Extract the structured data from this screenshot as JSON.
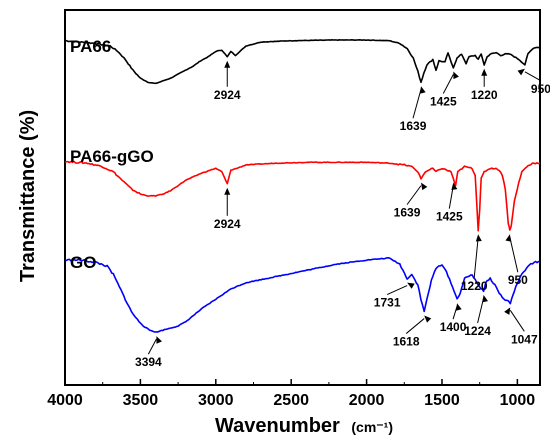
{
  "chart_data": {
    "type": "line",
    "xlabel": "Wavenumber",
    "xlabel_unit": "(cm⁻¹)",
    "ylabel": "Transmittance (%)",
    "xlim": [
      4000,
      850
    ],
    "x_reversed": true,
    "x_ticks": [
      "4000",
      "3500",
      "3000",
      "2500",
      "2000",
      "1500",
      "1000"
    ],
    "y_ticks": false,
    "grid": false,
    "series": [
      {
        "name": "PA66",
        "color": "#000000",
        "points": [
          [
            4000,
            98
          ],
          [
            3900,
            97
          ],
          [
            3800,
            96
          ],
          [
            3700,
            94
          ],
          [
            3650,
            90
          ],
          [
            3600,
            84
          ],
          [
            3550,
            76
          ],
          [
            3500,
            70
          ],
          [
            3450,
            67
          ],
          [
            3400,
            66
          ],
          [
            3350,
            68
          ],
          [
            3300,
            70
          ],
          [
            3250,
            73
          ],
          [
            3200,
            76
          ],
          [
            3150,
            79
          ],
          [
            3100,
            83
          ],
          [
            3050,
            86
          ],
          [
            3000,
            90
          ],
          [
            2960,
            91
          ],
          [
            2924,
            86
          ],
          [
            2900,
            90
          ],
          [
            2870,
            87
          ],
          [
            2850,
            89
          ],
          [
            2800,
            94
          ],
          [
            2700,
            97
          ],
          [
            2500,
            98
          ],
          [
            2200,
            98.5
          ],
          [
            2000,
            98.5
          ],
          [
            1850,
            98
          ],
          [
            1780,
            96
          ],
          [
            1730,
            92
          ],
          [
            1690,
            85
          ],
          [
            1660,
            75
          ],
          [
            1639,
            67
          ],
          [
            1620,
            74
          ],
          [
            1600,
            80
          ],
          [
            1560,
            84
          ],
          [
            1540,
            76
          ],
          [
            1520,
            83
          ],
          [
            1480,
            82
          ],
          [
            1460,
            89
          ],
          [
            1440,
            82
          ],
          [
            1425,
            78
          ],
          [
            1400,
            85
          ],
          [
            1370,
            88
          ],
          [
            1340,
            81
          ],
          [
            1320,
            86
          ],
          [
            1280,
            87
          ],
          [
            1260,
            84
          ],
          [
            1240,
            88
          ],
          [
            1220,
            80
          ],
          [
            1200,
            86
          ],
          [
            1180,
            88
          ],
          [
            1140,
            89
          ],
          [
            1110,
            87
          ],
          [
            1080,
            88
          ],
          [
            1050,
            88
          ],
          [
            1020,
            86
          ],
          [
            990,
            84
          ],
          [
            950,
            80
          ],
          [
            930,
            88
          ],
          [
            900,
            92
          ],
          [
            880,
            93
          ],
          [
            850,
            93
          ]
        ]
      },
      {
        "name": "PA66-gGO",
        "color": "#ff0000",
        "points": [
          [
            4000,
            98
          ],
          [
            3850,
            97
          ],
          [
            3750,
            95
          ],
          [
            3680,
            92
          ],
          [
            3620,
            87
          ],
          [
            3560,
            82
          ],
          [
            3500,
            79
          ],
          [
            3450,
            78
          ],
          [
            3400,
            78
          ],
          [
            3350,
            79
          ],
          [
            3300,
            81
          ],
          [
            3250,
            84
          ],
          [
            3200,
            87
          ],
          [
            3100,
            91
          ],
          [
            3000,
            94
          ],
          [
            2960,
            92
          ],
          [
            2924,
            85
          ],
          [
            2900,
            93
          ],
          [
            2860,
            94
          ],
          [
            2800,
            96
          ],
          [
            2600,
            97
          ],
          [
            2400,
            97.5
          ],
          [
            2200,
            97.5
          ],
          [
            2000,
            97.5
          ],
          [
            1850,
            97
          ],
          [
            1750,
            96
          ],
          [
            1700,
            95
          ],
          [
            1660,
            92
          ],
          [
            1639,
            88
          ],
          [
            1610,
            92
          ],
          [
            1560,
            94
          ],
          [
            1540,
            92
          ],
          [
            1500,
            94
          ],
          [
            1470,
            93
          ],
          [
            1440,
            92
          ],
          [
            1425,
            88
          ],
          [
            1410,
            84
          ],
          [
            1395,
            92
          ],
          [
            1350,
            95
          ],
          [
            1300,
            94
          ],
          [
            1280,
            90
          ],
          [
            1260,
            58
          ],
          [
            1250,
            70
          ],
          [
            1240,
            88
          ],
          [
            1220,
            92
          ],
          [
            1180,
            94
          ],
          [
            1150,
            94
          ],
          [
            1120,
            93
          ],
          [
            1100,
            90
          ],
          [
            1080,
            82
          ],
          [
            1060,
            62
          ],
          [
            1050,
            58
          ],
          [
            1040,
            61
          ],
          [
            1020,
            75
          ],
          [
            1000,
            82
          ],
          [
            990,
            86
          ],
          [
            970,
            92
          ],
          [
            950,
            94
          ],
          [
            920,
            96
          ],
          [
            900,
            97
          ],
          [
            850,
            97
          ]
        ]
      },
      {
        "name": "GO",
        "color": "#0000ff",
        "points": [
          [
            4000,
            99
          ],
          [
            3900,
            99
          ],
          [
            3800,
            98
          ],
          [
            3720,
            96
          ],
          [
            3680,
            92
          ],
          [
            3640,
            86
          ],
          [
            3600,
            80
          ],
          [
            3560,
            74
          ],
          [
            3520,
            70
          ],
          [
            3480,
            67
          ],
          [
            3440,
            65
          ],
          [
            3394,
            64
          ],
          [
            3350,
            65
          ],
          [
            3300,
            66
          ],
          [
            3250,
            67
          ],
          [
            3200,
            69
          ],
          [
            3150,
            72
          ],
          [
            3100,
            75
          ],
          [
            3000,
            80
          ],
          [
            2900,
            85
          ],
          [
            2800,
            88
          ],
          [
            2600,
            91
          ],
          [
            2400,
            94
          ],
          [
            2200,
            97
          ],
          [
            2000,
            99
          ],
          [
            1850,
            100
          ],
          [
            1780,
            97
          ],
          [
            1731,
            90
          ],
          [
            1700,
            92
          ],
          [
            1660,
            87
          ],
          [
            1640,
            80
          ],
          [
            1618,
            74
          ],
          [
            1600,
            80
          ],
          [
            1570,
            89
          ],
          [
            1540,
            95
          ],
          [
            1500,
            97
          ],
          [
            1470,
            93
          ],
          [
            1440,
            88
          ],
          [
            1400,
            80
          ],
          [
            1380,
            83
          ],
          [
            1350,
            90
          ],
          [
            1300,
            92
          ],
          [
            1270,
            88
          ],
          [
            1250,
            86
          ],
          [
            1224,
            84
          ],
          [
            1210,
            88
          ],
          [
            1180,
            90
          ],
          [
            1150,
            87
          ],
          [
            1120,
            83
          ],
          [
            1090,
            80
          ],
          [
            1060,
            79
          ],
          [
            1047,
            78
          ],
          [
            1030,
            82
          ],
          [
            1000,
            88
          ],
          [
            970,
            92
          ],
          [
            940,
            95
          ],
          [
            910,
            97
          ],
          [
            880,
            98
          ],
          [
            850,
            98
          ]
        ]
      }
    ],
    "series_labels": [
      {
        "series": "PA66",
        "text": "PA66"
      },
      {
        "series": "PA66-gGO",
        "text": "PA66-gGO"
      },
      {
        "series": "GO",
        "text": "GO"
      }
    ],
    "annotations": [
      {
        "series": "PA66",
        "text": "2924",
        "x": 2924
      },
      {
        "series": "PA66",
        "text": "1639",
        "x": 1639
      },
      {
        "series": "PA66",
        "text": "1425",
        "x": 1425
      },
      {
        "series": "PA66",
        "text": "1220",
        "x": 1220
      },
      {
        "series": "PA66",
        "text": "950",
        "x": 950
      },
      {
        "series": "PA66-gGO",
        "text": "2924",
        "x": 2924
      },
      {
        "series": "PA66-gGO",
        "text": "1639",
        "x": 1639
      },
      {
        "series": "PA66-gGO",
        "text": "1425",
        "x": 1425
      },
      {
        "series": "PA66-gGO",
        "text": "1220",
        "x": 1260
      },
      {
        "series": "PA66-gGO",
        "text": "950",
        "x": 1050
      },
      {
        "series": "GO",
        "text": "3394",
        "x": 3394
      },
      {
        "series": "GO",
        "text": "1731",
        "x": 1731
      },
      {
        "series": "GO",
        "text": "1618",
        "x": 1618
      },
      {
        "series": "GO",
        "text": "1400",
        "x": 1400
      },
      {
        "series": "GO",
        "text": "1224",
        "x": 1224
      },
      {
        "series": "GO",
        "text": "1047",
        "x": 1047
      }
    ]
  }
}
